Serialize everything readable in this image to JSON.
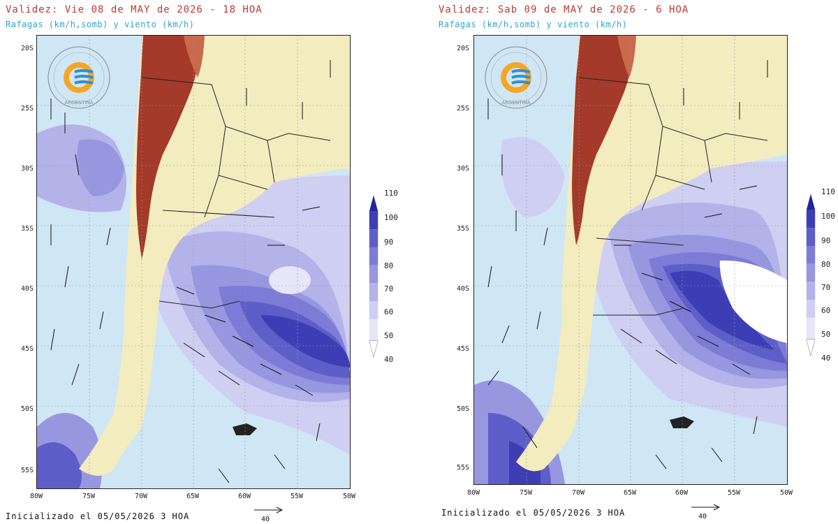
{
  "panels": [
    {
      "title": "Validez: Vie 08 de MAY de 2026 - 18 HOA",
      "subtitle": "Rafagas (km/h,somb) y viento (km/h)",
      "footer": "Inicializado el 05/05/2026 3 HOA",
      "ref_arrow_label": "40"
    },
    {
      "title": "Validez: Sab 09 de MAY de 2026 - 6 HOA",
      "subtitle": "Rafagas (km/h,somb) y viento (km/h)",
      "footer": "Inicializado el 05/05/2026 3 HOA",
      "ref_arrow_label": "40"
    }
  ],
  "lat_labels": [
    "20S",
    "25S",
    "30S",
    "35S",
    "40S",
    "45S",
    "50S",
    "55S"
  ],
  "lon_labels": [
    "80W",
    "75W",
    "70W",
    "65W",
    "60W",
    "55W",
    "50W"
  ],
  "colorbar_labels": [
    "110",
    "100",
    "90",
    "80",
    "70",
    "60",
    "50",
    "40"
  ],
  "colors": {
    "title": "#c0392b",
    "subtitle": "#2fa4c8",
    "ocean_base": "#cfe6f5",
    "land": "#f2ecbf",
    "mountain": "#a33a2a",
    "wind_scale": [
      "#e6e6f8",
      "#cfcff2",
      "#b3b3ea",
      "#9797e0",
      "#7c7cd6",
      "#5e5ec9",
      "#3e3eb4",
      "#23239a"
    ]
  },
  "logo": {
    "text": "ARGENTINA"
  }
}
